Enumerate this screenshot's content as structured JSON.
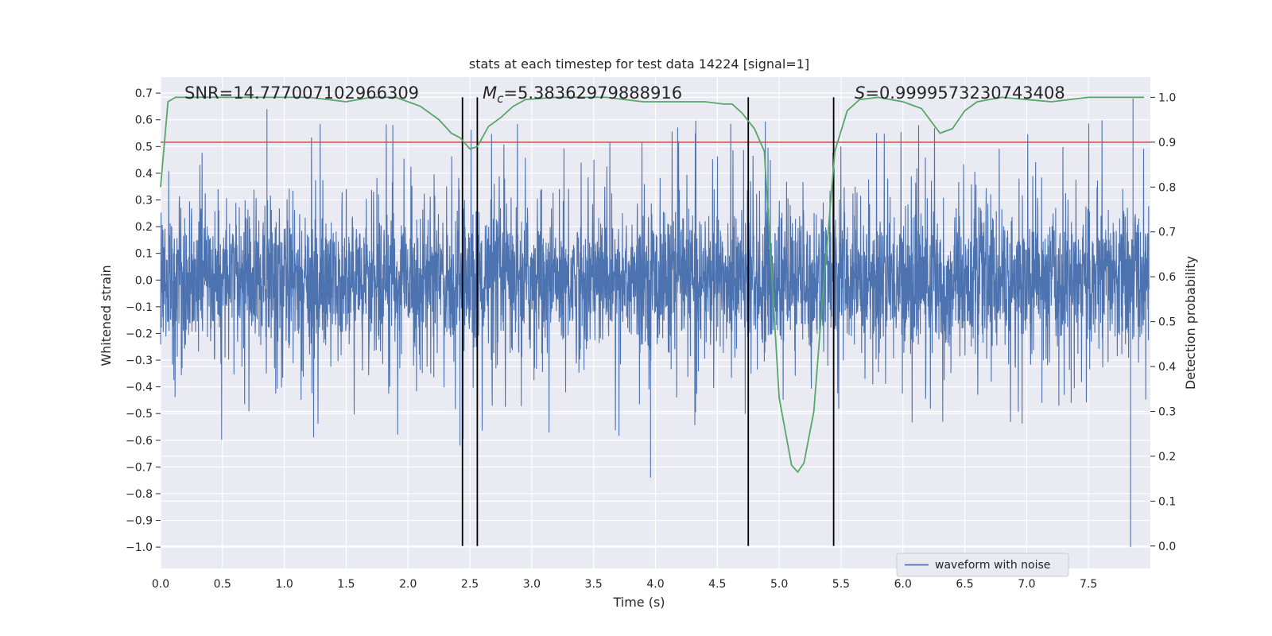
{
  "chart_data": {
    "type": "line",
    "title": "stats at each timestep for test data 14224 [signal=1]",
    "xlabel": "Time (s)",
    "ylabel": "Whitened strain",
    "y2label": "Detection probability",
    "xlim": [
      0.0,
      8.0
    ],
    "ylim": [
      -1.08,
      0.76
    ],
    "y2lim": [
      -0.05,
      1.045
    ],
    "xticks": [
      "0.0",
      "0.5",
      "1.0",
      "1.5",
      "2.0",
      "2.5",
      "3.0",
      "3.5",
      "4.0",
      "4.5",
      "5.0",
      "5.5",
      "6.0",
      "6.5",
      "7.0",
      "7.5"
    ],
    "yticks": [
      "0.7",
      "0.6",
      "0.5",
      "0.4",
      "0.3",
      "0.2",
      "0.1",
      "0.0",
      "−0.1",
      "−0.2",
      "−0.3",
      "−0.4",
      "−0.5",
      "−0.6",
      "−0.7",
      "−0.8",
      "−0.9",
      "−1.0"
    ],
    "y2ticks": [
      "1.0",
      "0.9",
      "0.8",
      "0.7",
      "0.6",
      "0.5",
      "0.4",
      "0.3",
      "0.2",
      "0.1",
      "0.0"
    ],
    "grid": true,
    "legend_position": "lower-right",
    "annotations": {
      "snr": "SNR=14.777007102966309",
      "mc_symbol": "M",
      "mc_sub": "c",
      "mc_value": "=5.38362979888916",
      "s_symbol": "S",
      "s_value": "=0.9999573230743408"
    },
    "series": [
      {
        "name": "waveform with noise",
        "axis": "left",
        "color": "#4c72b0",
        "noise": {
          "samples": 4096,
          "envelope": 0.16,
          "max_peak": 0.68,
          "min_trough": -1.0
        }
      },
      {
        "axis": "right",
        "color": "#55a868",
        "x": [
          0.0,
          0.06,
          0.12,
          0.2,
          0.4,
          0.8,
          1.2,
          1.5,
          1.7,
          1.9,
          2.0,
          2.1,
          2.25,
          2.35,
          2.42,
          2.5,
          2.56,
          2.65,
          2.75,
          2.85,
          2.95,
          3.2,
          3.6,
          3.9,
          4.2,
          4.4,
          4.55,
          4.62,
          4.7,
          4.8,
          4.88,
          5.0,
          5.1,
          5.15,
          5.2,
          5.28,
          5.35,
          5.45,
          5.55,
          5.65,
          5.8,
          6.0,
          6.15,
          6.3,
          6.4,
          6.5,
          6.6,
          6.8,
          7.0,
          7.2,
          7.5,
          7.8,
          7.95
        ],
        "y": [
          0.8,
          0.99,
          1.0,
          1.0,
          1.0,
          1.0,
          1.0,
          0.99,
          1.0,
          1.0,
          0.99,
          0.98,
          0.95,
          0.92,
          0.91,
          0.885,
          0.89,
          0.935,
          0.955,
          0.98,
          0.995,
          1.0,
          1.0,
          0.99,
          0.99,
          0.99,
          0.985,
          0.985,
          0.965,
          0.93,
          0.88,
          0.33,
          0.18,
          0.165,
          0.185,
          0.3,
          0.55,
          0.88,
          0.97,
          0.995,
          1.0,
          0.99,
          0.975,
          0.92,
          0.93,
          0.97,
          0.99,
          1.0,
          0.995,
          0.99,
          1.0,
          1.0,
          1.0
        ]
      },
      {
        "axis": "right",
        "color": "#c44e52",
        "type": "hline",
        "y": 0.9
      }
    ],
    "vlines": [
      2.44,
      2.56,
      4.75,
      5.44
    ]
  }
}
